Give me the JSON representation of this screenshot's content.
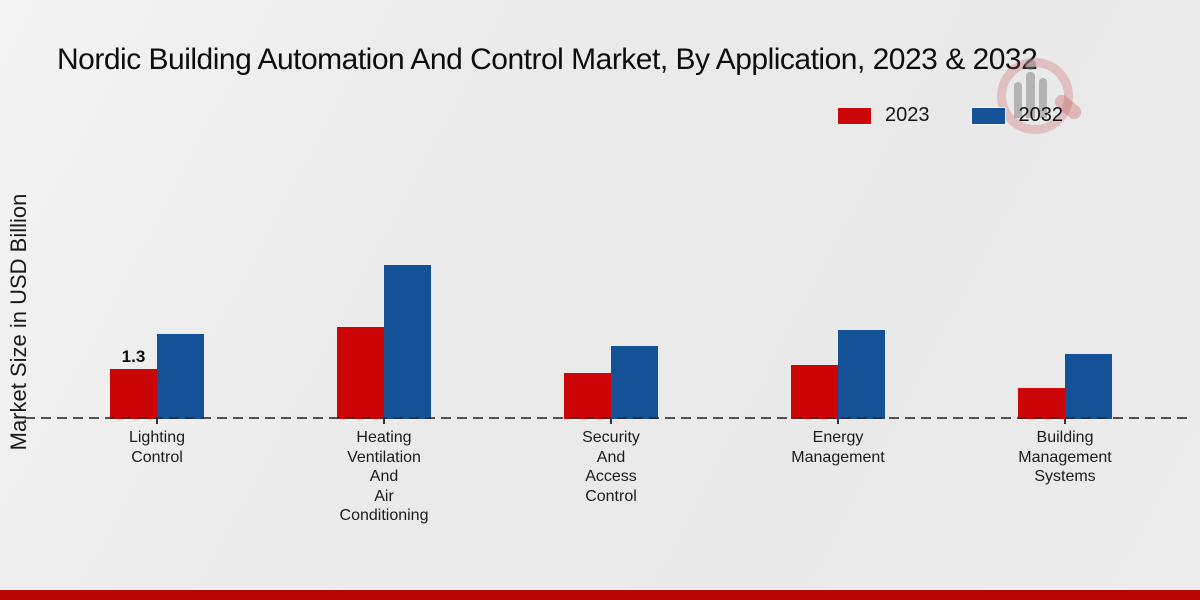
{
  "title": "Nordic Building Automation And Control Market, By Application, 2023 & 2032",
  "y_axis_label": "Market Size in USD Billion",
  "legend": [
    {
      "label": "2023",
      "color": "#cc0606"
    },
    {
      "label": "2032",
      "color": "#155196"
    }
  ],
  "watermark_icon": "magnifier-person-logo",
  "accent_colors": {
    "series_2023": "#cc0606",
    "series_2032": "#155196",
    "footer_bar": "#b90404",
    "baseline": "#2d2d2d"
  },
  "chart_data": {
    "type": "bar",
    "title": "Nordic Building Automation And Control Market, By Application, 2023 & 2032",
    "ylabel": "Market Size in USD Billion",
    "xlabel": "",
    "categories": [
      "Lighting Control",
      "Heating Ventilation And Air Conditioning",
      "Security And Access Control",
      "Energy Management",
      "Building Management Systems"
    ],
    "category_label_lines": [
      [
        "Lighting",
        "Control"
      ],
      [
        "Heating",
        "Ventilation",
        "And",
        "Air",
        "Conditioning"
      ],
      [
        "Security",
        "And",
        "Access",
        "Control"
      ],
      [
        "Energy",
        "Management"
      ],
      [
        "Building",
        "Management",
        "Systems"
      ]
    ],
    "series": [
      {
        "name": "2023",
        "color": "#cc0606",
        "values": [
          1.3,
          2.4,
          1.2,
          1.4,
          0.8
        ]
      },
      {
        "name": "2032",
        "color": "#155196",
        "values": [
          2.2,
          4.0,
          1.9,
          2.3,
          1.7
        ]
      }
    ],
    "annotations": [
      {
        "category_index": 0,
        "series": "2023",
        "text": "1.3"
      }
    ],
    "ylim": [
      0,
      4.5
    ],
    "grid": false,
    "baseline_style": "dashed",
    "legend_position": "top-right"
  }
}
